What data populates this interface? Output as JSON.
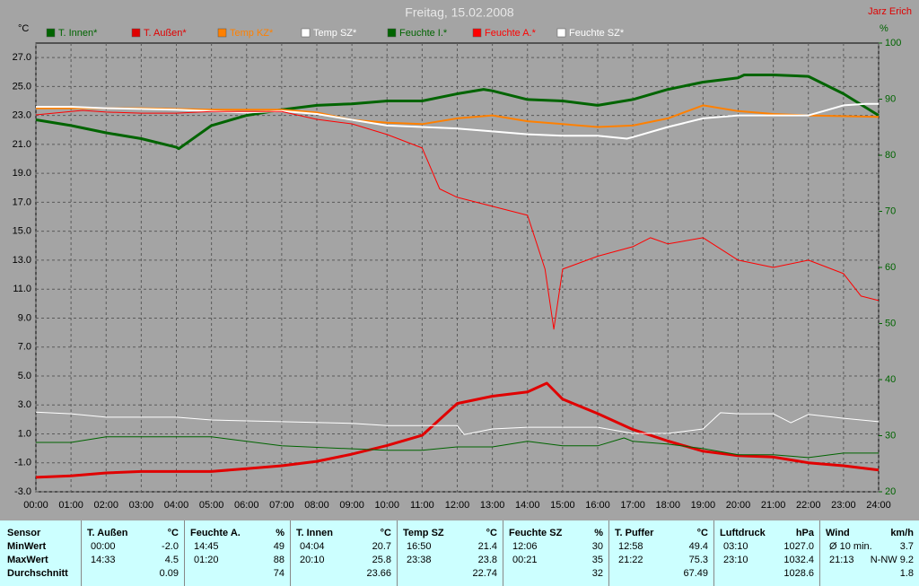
{
  "chart_data": {
    "type": "line",
    "title": "Freitag, 15.02.2008",
    "y_unit": "°C",
    "y2_unit": "%",
    "xlim": [
      0,
      24
    ],
    "xticks": [
      {
        "value": 0,
        "label": "00:00"
      },
      {
        "value": 1,
        "label": "01:00"
      },
      {
        "value": 2,
        "label": "02:00"
      },
      {
        "value": 3,
        "label": "03:00"
      },
      {
        "value": 4,
        "label": "04:00"
      },
      {
        "value": 5,
        "label": "05:00"
      },
      {
        "value": 6,
        "label": "06:00"
      },
      {
        "value": 7,
        "label": "07:00"
      },
      {
        "value": 8,
        "label": "08:00"
      },
      {
        "value": 9,
        "label": "09:00"
      },
      {
        "value": 10,
        "label": "10:00"
      },
      {
        "value": 11,
        "label": "11:00"
      },
      {
        "value": 12,
        "label": "12:00"
      },
      {
        "value": 13,
        "label": "13:00"
      },
      {
        "value": 14,
        "label": "14:00"
      },
      {
        "value": 15,
        "label": "15:00"
      },
      {
        "value": 16,
        "label": "16:00"
      },
      {
        "value": 17,
        "label": "17:00"
      },
      {
        "value": 18,
        "label": "18:00"
      },
      {
        "value": 19,
        "label": "19:00"
      },
      {
        "value": 20,
        "label": "20:00"
      },
      {
        "value": 21,
        "label": "21:00"
      },
      {
        "value": 22,
        "label": "22:00"
      },
      {
        "value": 23,
        "label": "23:00"
      },
      {
        "value": 24,
        "label": "24:00"
      }
    ],
    "ylim": [
      -3,
      28
    ],
    "yticks": [
      {
        "value": -3,
        "label": "-3.0"
      },
      {
        "value": -1,
        "label": "-1.0"
      },
      {
        "value": 1,
        "label": "1.0"
      },
      {
        "value": 3,
        "label": "3.0"
      },
      {
        "value": 5,
        "label": "5.0"
      },
      {
        "value": 7,
        "label": "7.0"
      },
      {
        "value": 9,
        "label": "9.0"
      },
      {
        "value": 11,
        "label": "11.0"
      },
      {
        "value": 13,
        "label": "13.0"
      },
      {
        "value": 15,
        "label": "15.0"
      },
      {
        "value": 17,
        "label": "17.0"
      },
      {
        "value": 19,
        "label": "19.0"
      },
      {
        "value": 21,
        "label": "21.0"
      },
      {
        "value": 23,
        "label": "23.0"
      },
      {
        "value": 25,
        "label": "25.0"
      },
      {
        "value": 27,
        "label": "27.0"
      }
    ],
    "y2lim": [
      20,
      100
    ],
    "y2ticks": [
      20,
      30,
      40,
      50,
      60,
      70,
      80,
      90,
      100
    ],
    "grid": true,
    "series": [
      {
        "name": "T. Innen*",
        "color": "#006400",
        "width": 3,
        "x": [
          0,
          1,
          2,
          3,
          4,
          4.07,
          5,
          6,
          7,
          8,
          9,
          10,
          11,
          12,
          12.75,
          13,
          14,
          15,
          16,
          17,
          18,
          19,
          20,
          20.17,
          21,
          22,
          23,
          24
        ],
        "values": [
          22.7,
          22.3,
          21.8,
          21.4,
          20.8,
          20.7,
          22.3,
          23.0,
          23.4,
          23.7,
          23.8,
          24.0,
          24.0,
          24.5,
          24.8,
          24.7,
          24.1,
          24.0,
          23.7,
          24.1,
          24.8,
          25.3,
          25.6,
          25.8,
          25.8,
          25.7,
          24.5,
          23.0
        ]
      },
      {
        "name": "T. Außen*",
        "color": "#e00000",
        "width": 3,
        "x": [
          0,
          1,
          2,
          3,
          4,
          5,
          6,
          7,
          8,
          9,
          10,
          11,
          12,
          13,
          14,
          14.55,
          15,
          16,
          17,
          18,
          19,
          20,
          21,
          22,
          23,
          24
        ],
        "values": [
          -2.0,
          -1.9,
          -1.7,
          -1.6,
          -1.6,
          -1.6,
          -1.4,
          -1.2,
          -0.9,
          -0.4,
          0.2,
          0.9,
          3.1,
          3.6,
          3.9,
          4.5,
          3.4,
          2.4,
          1.3,
          0.5,
          -0.2,
          -0.5,
          -0.6,
          -1.0,
          -1.2,
          -1.5
        ]
      },
      {
        "name": "Temp KZ*",
        "color": "#ff8000",
        "width": 2,
        "x": [
          0,
          3,
          5,
          7,
          8,
          9,
          10,
          11,
          12,
          13,
          14,
          15,
          16,
          17,
          18,
          19,
          20,
          21,
          22,
          24
        ],
        "values": [
          23.5,
          23.5,
          23.4,
          23.4,
          23.2,
          22.7,
          22.5,
          22.4,
          22.8,
          23.0,
          22.6,
          22.4,
          22.2,
          22.3,
          22.8,
          23.7,
          23.3,
          23.1,
          23.0,
          22.9
        ]
      },
      {
        "name": "Temp SZ*",
        "color": "#ffffff",
        "width": 2,
        "x": [
          0,
          1,
          2,
          4,
          6,
          7,
          8,
          9,
          10,
          11,
          12,
          13,
          14,
          15,
          16,
          16.83,
          17,
          18,
          19,
          20,
          21,
          22,
          23,
          23.63,
          24
        ],
        "values": [
          23.6,
          23.6,
          23.5,
          23.4,
          23.2,
          23.3,
          23.1,
          22.7,
          22.3,
          22.2,
          22.1,
          21.9,
          21.7,
          21.6,
          21.6,
          21.4,
          21.5,
          22.2,
          22.8,
          23.0,
          23.0,
          23.0,
          23.7,
          23.8,
          23.8
        ]
      },
      {
        "name": "Feuchte I.*",
        "color": "#006400",
        "width": 1,
        "axis": "y2",
        "x": [
          0,
          1,
          2,
          5,
          7,
          10,
          11,
          12,
          13,
          14,
          15,
          16,
          16.75,
          17,
          18,
          19,
          20,
          21,
          22,
          23,
          24
        ],
        "values": [
          28.8,
          28.8,
          29.8,
          29.8,
          28.2,
          27.4,
          27.4,
          28.0,
          28.0,
          29.0,
          28.2,
          28.2,
          29.6,
          29.0,
          28.5,
          27.7,
          26.6,
          26.6,
          26.1,
          26.9,
          26.9
        ]
      },
      {
        "name": "Feuchte A.*",
        "color": "#ff0000",
        "width": 1,
        "axis": "y2",
        "x": [
          0,
          1.33,
          2,
          3,
          4,
          5,
          6,
          7,
          8,
          9,
          10,
          11,
          11.5,
          12,
          13,
          14,
          14.5,
          14.75,
          15,
          16,
          17,
          17.5,
          18,
          19,
          20,
          21,
          22,
          23,
          23.5,
          24
        ],
        "values": [
          87.2,
          88,
          87.7,
          87.5,
          87.5,
          87.8,
          87.8,
          87.8,
          86.4,
          85.6,
          83.7,
          81.3,
          74.0,
          72.5,
          70.9,
          69.3,
          59.7,
          49,
          59.7,
          62.0,
          63.7,
          65.3,
          64.2,
          65.3,
          61.3,
          60.0,
          61.3,
          58.9,
          54.9,
          54.1
        ]
      },
      {
        "name": "Feuchte SZ*",
        "color": "#ffffff",
        "width": 1,
        "axis": "y2",
        "x": [
          0,
          1,
          2,
          4,
          5,
          7,
          9,
          10,
          12,
          12.2,
          13,
          14,
          15,
          16,
          17,
          18,
          19,
          19.5,
          20,
          21,
          21.5,
          22,
          23,
          24
        ],
        "values": [
          34.2,
          33.9,
          33.3,
          33.3,
          32.8,
          32.5,
          32.2,
          31.8,
          31.8,
          30.2,
          31.2,
          31.5,
          31.5,
          31.5,
          30.4,
          30.4,
          31.2,
          34.1,
          33.9,
          33.9,
          32.3,
          33.8,
          33.1,
          32.5
        ]
      }
    ]
  },
  "header": {
    "author": "Jarz Erich"
  },
  "table": {
    "row_labels": [
      "Sensor",
      "MinWert",
      "MaxWert",
      "Durchschnitt"
    ],
    "columns": [
      {
        "name": "T. Außen",
        "unit": "°C",
        "min_time": "00:00",
        "min": "-2.0",
        "max_time": "14:33",
        "max": "4.5",
        "avg": "0.09"
      },
      {
        "name": "Feuchte A.",
        "unit": "%",
        "min_time": "14:45",
        "min": "49",
        "max_time": "01:20",
        "max": "88",
        "avg": "74"
      },
      {
        "name": "T. Innen",
        "unit": "°C",
        "min_time": "04:04",
        "min": "20.7",
        "max_time": "20:10",
        "max": "25.8",
        "avg": "23.66"
      },
      {
        "name": "Temp SZ",
        "unit": "°C",
        "min_time": "16:50",
        "min": "21.4",
        "max_time": "23:38",
        "max": "23.8",
        "avg": "22.74"
      },
      {
        "name": "Feuchte SZ",
        "unit": "%",
        "min_time": "12:06",
        "min": "30",
        "max_time": "00:21",
        "max": "35",
        "avg": "32"
      },
      {
        "name": "T. Puffer",
        "unit": "°C",
        "min_time": "12:58",
        "min": "49.4",
        "max_time": "21:22",
        "max": "75.3",
        "avg": "67.49"
      },
      {
        "name": "Luftdruck",
        "unit": "hPa",
        "min_time": "03:10",
        "min": "1027.0",
        "max_time": "23:10",
        "max": "1032.4",
        "avg": "1028.6"
      },
      {
        "name": "Wind",
        "unit": "km/h",
        "min_time": "Ø 10 min.",
        "min": "3.7",
        "max_time": "21:13",
        "max": "N-NW 9.2",
        "avg": "1.8"
      }
    ]
  }
}
